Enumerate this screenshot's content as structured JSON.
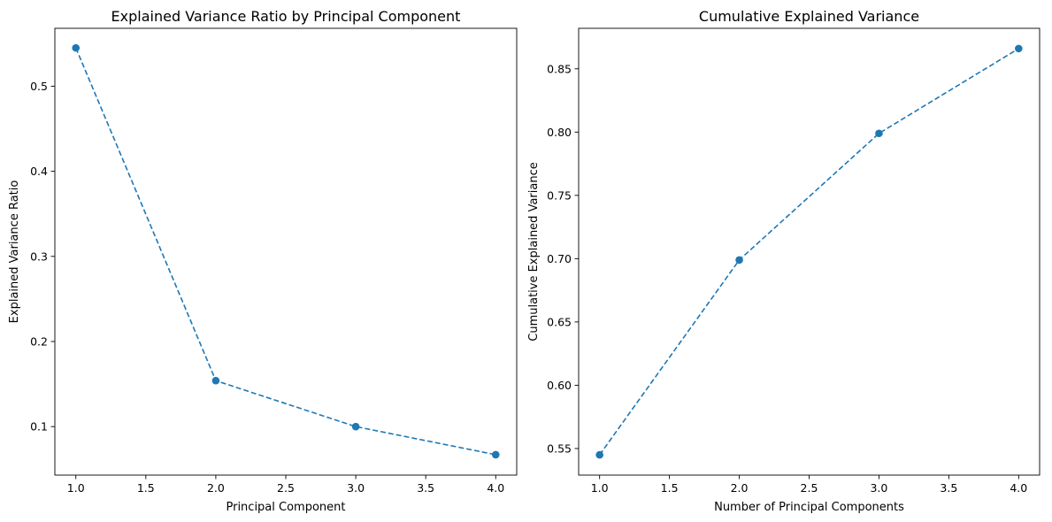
{
  "chart_data": [
    {
      "type": "line",
      "title": "Explained Variance Ratio by Principal Component",
      "xlabel": "Principal Component",
      "ylabel": "Explained Variance Ratio",
      "xlim": [
        0.85,
        4.15
      ],
      "ylim": [
        0.043,
        0.568
      ],
      "x_ticks": [
        1.0,
        1.5,
        2.0,
        2.5,
        3.0,
        3.5,
        4.0
      ],
      "x_tick_labels": [
        "1.0",
        "1.5",
        "2.0",
        "2.5",
        "3.0",
        "3.5",
        "4.0"
      ],
      "y_ticks": [
        0.1,
        0.2,
        0.3,
        0.4,
        0.5
      ],
      "y_tick_labels": [
        "0.1",
        "0.2",
        "0.3",
        "0.4",
        "0.5"
      ],
      "grid": false,
      "series": [
        {
          "x": [
            1,
            2,
            3,
            4
          ],
          "values": [
            0.545,
            0.154,
            0.1,
            0.067
          ],
          "color": "#1f77b4",
          "line_style": "dashed",
          "marker": "circle"
        }
      ]
    },
    {
      "type": "line",
      "title": "Cumulative Explained Variance",
      "xlabel": "Number of Principal Components",
      "ylabel": "Cumulative Explained Variance",
      "xlim": [
        0.85,
        4.15
      ],
      "ylim": [
        0.529,
        0.882
      ],
      "x_ticks": [
        1.0,
        1.5,
        2.0,
        2.5,
        3.0,
        3.5,
        4.0
      ],
      "x_tick_labels": [
        "1.0",
        "1.5",
        "2.0",
        "2.5",
        "3.0",
        "3.5",
        "4.0"
      ],
      "y_ticks": [
        0.55,
        0.6,
        0.65,
        0.7,
        0.75,
        0.8,
        0.85
      ],
      "y_tick_labels": [
        "0.55",
        "0.60",
        "0.65",
        "0.70",
        "0.75",
        "0.80",
        "0.85"
      ],
      "grid": false,
      "series": [
        {
          "x": [
            1,
            2,
            3,
            4
          ],
          "values": [
            0.545,
            0.699,
            0.799,
            0.866
          ],
          "color": "#1f77b4",
          "line_style": "dashed",
          "marker": "circle"
        }
      ]
    }
  ]
}
